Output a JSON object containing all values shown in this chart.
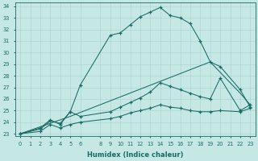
{
  "xlabel": "Humidex (Indice chaleur)",
  "xlim": [
    -0.5,
    23.5
  ],
  "ylim": [
    22.8,
    34.3
  ],
  "yticks": [
    23,
    24,
    25,
    26,
    27,
    28,
    29,
    30,
    31,
    32,
    33,
    34
  ],
  "xticks": [
    0,
    1,
    2,
    3,
    4,
    5,
    6,
    8,
    9,
    10,
    11,
    12,
    13,
    14,
    15,
    16,
    17,
    18,
    19,
    20,
    21,
    22,
    23
  ],
  "bg_color": "#c5e8e5",
  "grid_color": "#b0d5d2",
  "line_color": "#1a6b65",
  "line1_x": [
    0,
    2,
    3,
    4,
    5,
    6,
    9,
    10,
    11,
    12,
    13,
    14,
    15,
    16,
    17,
    18,
    19,
    20,
    22,
    23
  ],
  "line1_y": [
    23,
    23.5,
    24.2,
    23.8,
    24.9,
    27.2,
    31.5,
    31.7,
    32.4,
    33.1,
    33.5,
    33.9,
    33.2,
    33.0,
    32.5,
    31.0,
    29.2,
    28.8,
    26.8,
    25.3
  ],
  "line2_x": [
    0,
    2,
    3,
    4,
    5,
    6,
    9,
    10,
    11,
    12,
    13,
    14,
    15,
    16,
    17,
    18,
    19,
    20,
    22,
    23
  ],
  "line2_y": [
    23,
    23.4,
    24.1,
    23.9,
    24.9,
    24.5,
    24.9,
    25.3,
    25.7,
    26.1,
    26.6,
    27.4,
    27.1,
    26.8,
    26.5,
    26.2,
    26.0,
    27.8,
    25.0,
    25.5
  ],
  "line3_x": [
    0,
    2,
    3,
    4,
    5,
    6,
    9,
    10,
    11,
    12,
    13,
    14,
    15,
    16,
    17,
    18,
    19,
    20,
    22,
    23
  ],
  "line3_y": [
    23,
    23.2,
    23.8,
    23.5,
    23.8,
    24.0,
    24.3,
    24.5,
    24.8,
    25.0,
    25.2,
    25.5,
    25.3,
    25.2,
    25.0,
    24.9,
    24.9,
    25.0,
    24.9,
    25.2
  ],
  "line4_x": [
    0,
    5,
    19,
    22,
    23
  ],
  "line4_y": [
    23,
    24.5,
    29.2,
    26.5,
    25.5
  ]
}
